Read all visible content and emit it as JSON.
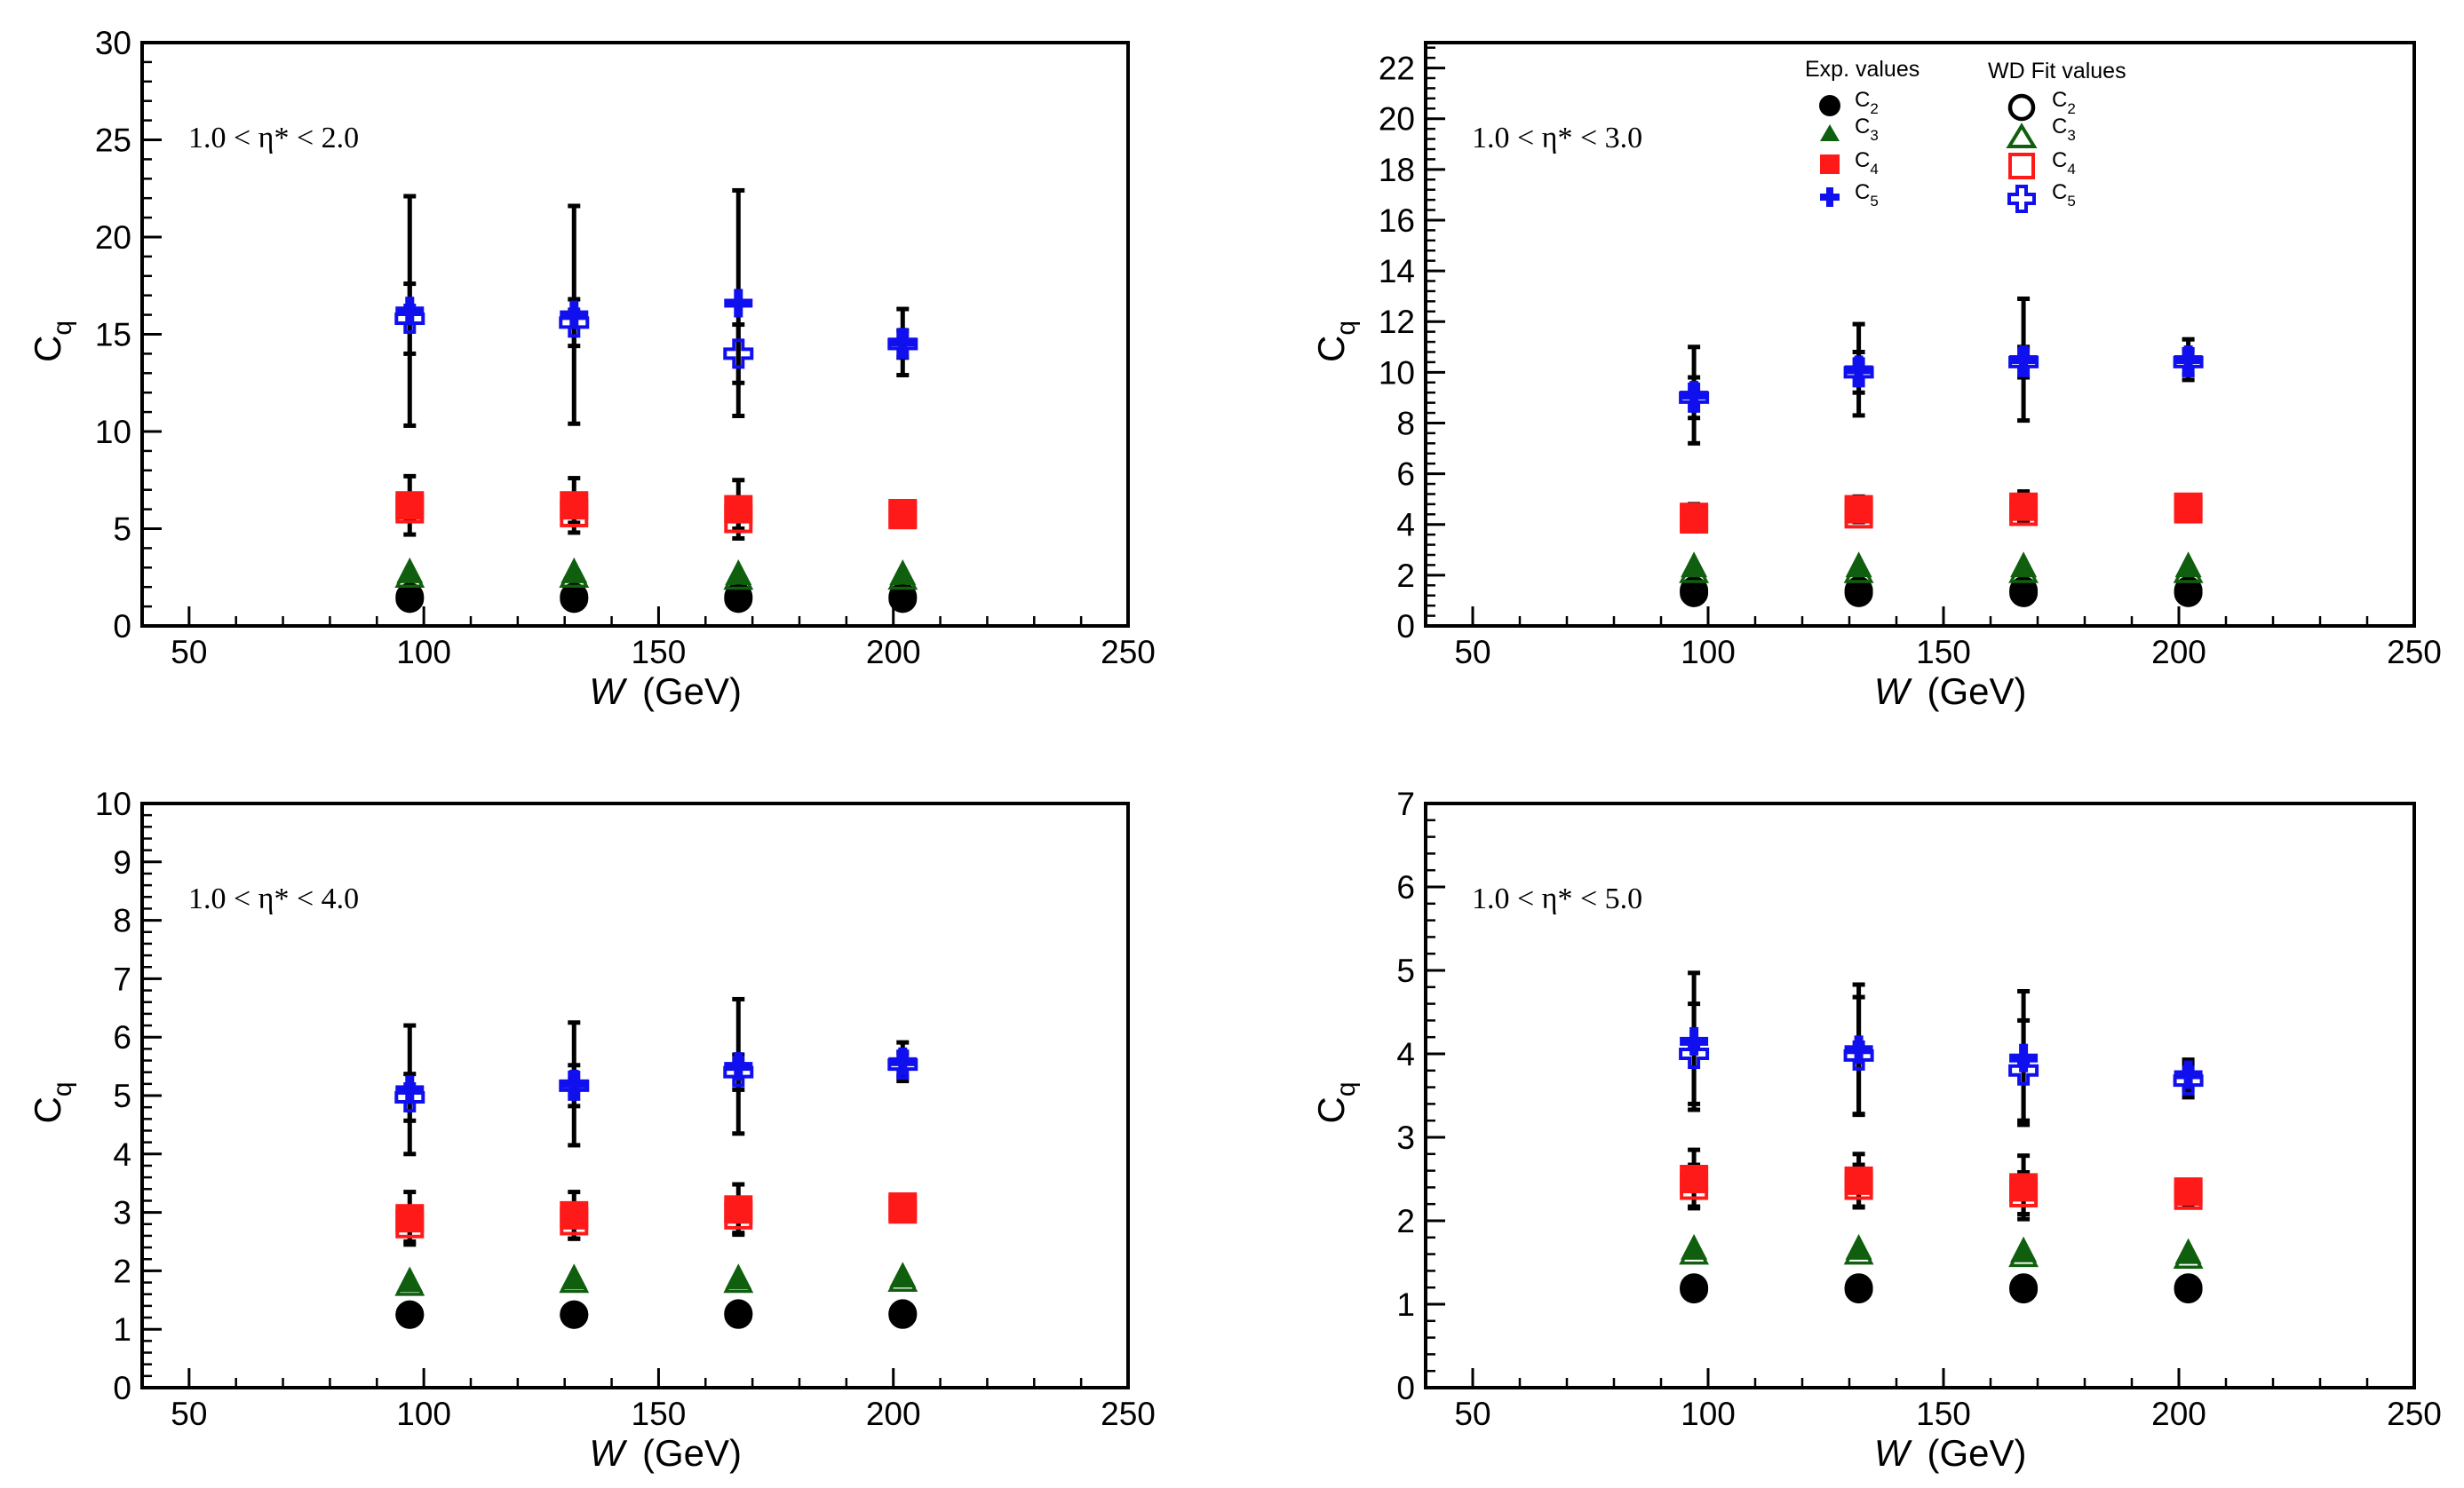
{
  "figure": {
    "ylabel_main": "C",
    "ylabel_sub": "q"
  },
  "legend": {
    "exp_header": "Exp. values",
    "fit_header": "WD Fit values",
    "entries": [
      {
        "main": "C",
        "sub": "2"
      },
      {
        "main": "C",
        "sub": "3"
      },
      {
        "main": "C",
        "sub": "4"
      },
      {
        "main": "C",
        "sub": "5"
      }
    ]
  },
  "colors": {
    "C2": "#000000",
    "C3": "#0f5f0f",
    "C4": "#ff1a1a",
    "C5": "#1010ee",
    "error": "#000000"
  },
  "chart_data": [
    {
      "type": "scatter",
      "region_label": "1.0 < η* < 2.0",
      "xlabel": "W",
      "xunit": "(GeV)",
      "ylabel": "Cq",
      "xlim": [
        40,
        250
      ],
      "ylim": [
        0,
        30
      ],
      "xticks": [
        50,
        100,
        150,
        200,
        250
      ],
      "yticks": [
        0,
        5,
        10,
        15,
        20,
        25,
        30
      ],
      "x": [
        97,
        132,
        167,
        202
      ],
      "exp": {
        "C2": [
          1.5,
          1.5,
          1.5,
          1.5
        ],
        "C3": [
          2.7,
          2.7,
          2.6,
          2.6
        ],
        "C4": [
          6.2,
          6.2,
          6.0,
          5.8
        ],
        "C5": [
          16.2,
          16.0,
          16.6,
          14.6
        ]
      },
      "exp_err": {
        "C2": [
          0,
          0,
          0,
          0
        ],
        "C3": [
          0,
          0,
          0,
          0
        ],
        "C4": [
          1.5,
          1.4,
          1.5,
          0.4
        ],
        "C5": [
          5.9,
          5.6,
          5.8,
          1.7
        ]
      },
      "fit": {
        "C2": [
          1.4,
          1.4,
          1.4,
          1.4
        ],
        "C3": [
          2.5,
          2.5,
          2.4,
          2.4
        ],
        "C4": [
          6.0,
          5.8,
          5.5,
          5.7
        ],
        "C5": [
          15.8,
          15.6,
          14.0,
          14.5
        ]
      },
      "fit_err": {
        "C4": [
          0.5,
          0.5,
          0.5,
          0.3
        ],
        "C5": [
          1.8,
          1.2,
          1.5,
          0.7
        ]
      }
    },
    {
      "type": "scatter",
      "region_label": "1.0 < η* < 3.0",
      "xlabel": "W",
      "xunit": "(GeV)",
      "ylabel": "Cq",
      "xlim": [
        40,
        250
      ],
      "ylim": [
        0,
        23
      ],
      "xticks": [
        50,
        100,
        150,
        200,
        250
      ],
      "yticks": [
        0,
        2,
        4,
        6,
        8,
        10,
        12,
        14,
        16,
        18,
        20,
        22
      ],
      "x": [
        97,
        132,
        167,
        202
      ],
      "exp": {
        "C2": [
          1.4,
          1.4,
          1.4,
          1.4
        ],
        "C3": [
          2.3,
          2.3,
          2.3,
          2.3
        ],
        "C4": [
          4.3,
          4.6,
          4.7,
          4.7
        ],
        "C5": [
          9.1,
          10.1,
          10.5,
          10.5
        ]
      },
      "exp_err": {
        "C2": [
          0,
          0,
          0,
          0
        ],
        "C3": [
          0,
          0,
          0,
          0
        ],
        "C4": [
          0.5,
          0.5,
          0.6,
          0.2
        ],
        "C5": [
          1.9,
          1.8,
          2.4,
          0.8
        ]
      },
      "fit": {
        "C2": [
          1.3,
          1.3,
          1.3,
          1.3
        ],
        "C3": [
          2.1,
          2.1,
          2.1,
          2.1
        ],
        "C4": [
          4.2,
          4.4,
          4.5,
          4.6
        ],
        "C5": [
          9.0,
          10.0,
          10.4,
          10.4
        ]
      },
      "fit_err": {
        "C4": [
          0.3,
          0.3,
          0.4,
          0.2
        ],
        "C5": [
          0.8,
          0.8,
          0.6,
          0.5
        ]
      }
    },
    {
      "type": "scatter",
      "region_label": "1.0 < η* < 4.0",
      "xlabel": "W",
      "xunit": "(GeV)",
      "ylabel": "Cq",
      "xlim": [
        40,
        250
      ],
      "ylim": [
        0,
        10
      ],
      "xticks": [
        50,
        100,
        150,
        200,
        250
      ],
      "yticks": [
        0,
        1,
        2,
        3,
        4,
        5,
        6,
        7,
        8,
        9,
        10
      ],
      "x": [
        97,
        132,
        167,
        202
      ],
      "exp": {
        "C2": [
          1.25,
          1.25,
          1.27,
          1.27
        ],
        "C3": [
          1.8,
          1.85,
          1.85,
          1.88
        ],
        "C4": [
          2.9,
          2.95,
          3.05,
          3.1
        ],
        "C5": [
          5.1,
          5.2,
          5.5,
          5.58
        ]
      },
      "exp_err": {
        "C2": [
          0,
          0,
          0,
          0
        ],
        "C3": [
          0,
          0,
          0,
          0
        ],
        "C4": [
          0.45,
          0.4,
          0.43,
          0.12
        ],
        "C5": [
          1.1,
          1.05,
          1.15,
          0.33
        ]
      },
      "fit": {
        "C2": [
          1.25,
          1.25,
          1.25,
          1.25
        ],
        "C3": [
          1.75,
          1.8,
          1.8,
          1.82
        ],
        "C4": [
          2.8,
          2.85,
          2.95,
          3.05
        ],
        "C5": [
          4.97,
          5.17,
          5.4,
          5.53
        ]
      },
      "fit_err": {
        "C4": [
          0.3,
          0.3,
          0.3,
          0.12
        ],
        "C5": [
          0.4,
          0.35,
          0.3,
          0.2
        ]
      }
    },
    {
      "type": "scatter",
      "region_label": "1.0 < η* < 5.0",
      "xlabel": "W",
      "xunit": "(GeV)",
      "ylabel": "Cq",
      "xlim": [
        40,
        250
      ],
      "ylim": [
        0,
        7
      ],
      "xticks": [
        50,
        100,
        150,
        200,
        250
      ],
      "yticks": [
        0,
        1,
        2,
        3,
        4,
        5,
        6,
        7
      ],
      "x": [
        97,
        132,
        167,
        202
      ],
      "exp": {
        "C2": [
          1.2,
          1.2,
          1.2,
          1.2
        ],
        "C3": [
          1.65,
          1.65,
          1.62,
          1.6
        ],
        "C4": [
          2.5,
          2.48,
          2.4,
          2.35
        ],
        "C5": [
          4.15,
          4.05,
          3.95,
          3.75
        ]
      },
      "exp_err": {
        "C2": [
          0,
          0,
          0,
          0
        ],
        "C3": [
          0,
          0,
          0,
          0
        ],
        "C4": [
          0.35,
          0.32,
          0.38,
          0.1
        ],
        "C5": [
          0.82,
          0.78,
          0.8,
          0.18
        ]
      },
      "fit": {
        "C2": [
          1.18,
          1.18,
          1.18,
          1.18
        ],
        "C3": [
          1.6,
          1.6,
          1.57,
          1.55
        ],
        "C4": [
          2.42,
          2.42,
          2.33,
          2.3
        ],
        "C5": [
          4.0,
          3.98,
          3.8,
          3.68
        ]
      },
      "fit_err": {
        "C4": [
          0.25,
          0.25,
          0.25,
          0.12
        ],
        "C5": [
          0.6,
          0.7,
          0.6,
          0.2
        ]
      }
    }
  ]
}
